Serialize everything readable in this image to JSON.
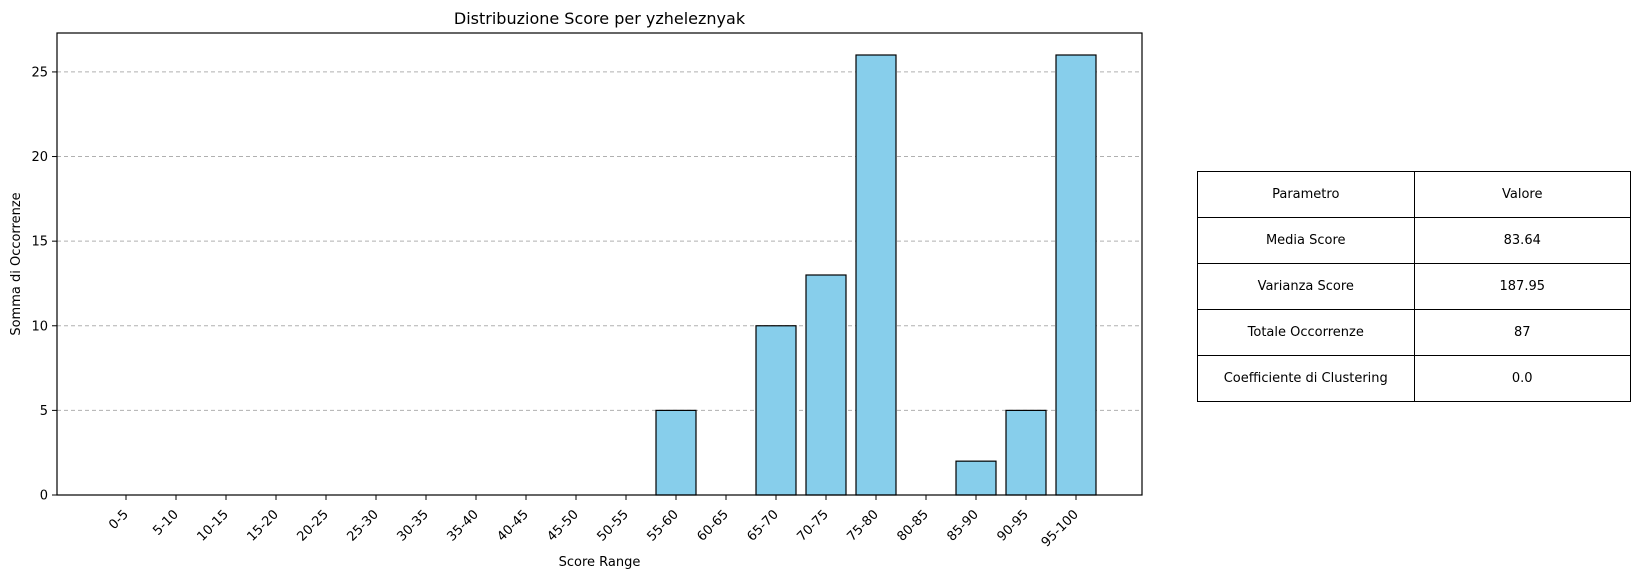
{
  "chart_data": {
    "type": "bar",
    "title": "Distribuzione Score per yzheleznyak",
    "xlabel": "Score Range",
    "ylabel": "Somma di Occorrenze",
    "categories": [
      "0-5",
      "5-10",
      "10-15",
      "15-20",
      "20-25",
      "25-30",
      "30-35",
      "35-40",
      "40-45",
      "45-50",
      "50-55",
      "55-60",
      "60-65",
      "65-70",
      "70-75",
      "75-80",
      "80-85",
      "85-90",
      "90-95",
      "95-100"
    ],
    "values": [
      0,
      0,
      0,
      0,
      0,
      0,
      0,
      0,
      0,
      0,
      0,
      5,
      0,
      10,
      13,
      26,
      0,
      2,
      5,
      26
    ],
    "ylim": [
      0,
      27.3
    ],
    "yticks": [
      0,
      5,
      10,
      15,
      20,
      25
    ],
    "grid": "y-dashed",
    "bar_color": "#87CEEB",
    "bar_edge_color": "#000000",
    "grid_color": "#b0b0b0"
  },
  "table": {
    "header": [
      "Parametro",
      "Valore"
    ],
    "rows": [
      [
        "Media Score",
        "83.64"
      ],
      [
        "Varianza Score",
        "187.95"
      ],
      [
        "Totale Occorrenze",
        "87"
      ],
      [
        "Coefficiente di Clustering",
        "0.0"
      ]
    ]
  }
}
